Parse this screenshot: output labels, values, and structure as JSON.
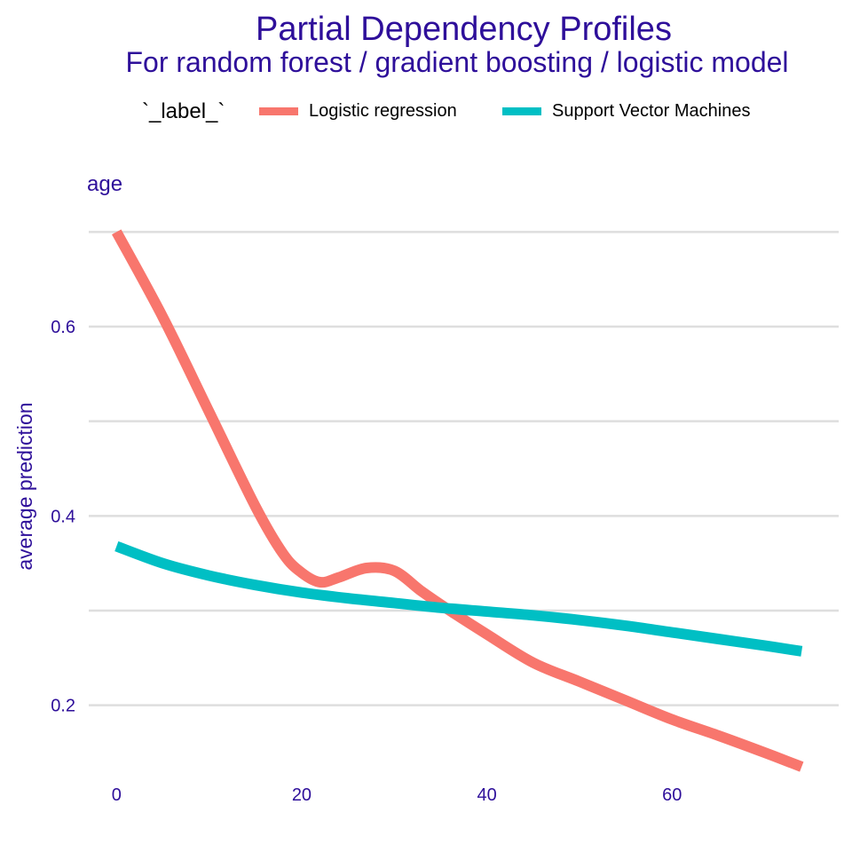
{
  "chart_data": {
    "type": "line",
    "title": "Partial Dependency Profiles",
    "subtitle": "For random forest / gradient boosting / logistic model",
    "legend_title": "`_label_`",
    "legend_position": "top",
    "panel_label": "age",
    "xlabel": "",
    "ylabel": "average prediction",
    "xlim": [
      -3,
      78
    ],
    "ylim": [
      0.12,
      0.72
    ],
    "x_ticks": [
      0,
      20,
      40,
      60
    ],
    "y_ticks": [
      0.2,
      0.4,
      0.6
    ],
    "y_gridlines": [
      0.2,
      0.3,
      0.4,
      0.5,
      0.6,
      0.7
    ],
    "grid": true,
    "series": [
      {
        "name": "Logistic regression",
        "color": "#F8766D",
        "x": [
          0,
          5,
          10,
          15,
          18,
          20,
          22,
          24,
          27,
          30,
          33,
          36,
          40,
          45,
          50,
          55,
          60,
          65,
          70,
          74
        ],
        "y": [
          0.7,
          0.61,
          0.51,
          0.41,
          0.36,
          0.34,
          0.33,
          0.335,
          0.345,
          0.342,
          0.32,
          0.3,
          0.275,
          0.245,
          0.225,
          0.205,
          0.185,
          0.168,
          0.15,
          0.135
        ]
      },
      {
        "name": "Support Vector Machines",
        "color": "#00BFC4",
        "x": [
          0,
          5,
          10,
          15,
          20,
          25,
          30,
          35,
          40,
          45,
          50,
          55,
          60,
          65,
          70,
          74
        ],
        "y": [
          0.368,
          0.35,
          0.337,
          0.327,
          0.319,
          0.313,
          0.308,
          0.303,
          0.299,
          0.295,
          0.29,
          0.284,
          0.277,
          0.27,
          0.263,
          0.257
        ]
      }
    ]
  }
}
